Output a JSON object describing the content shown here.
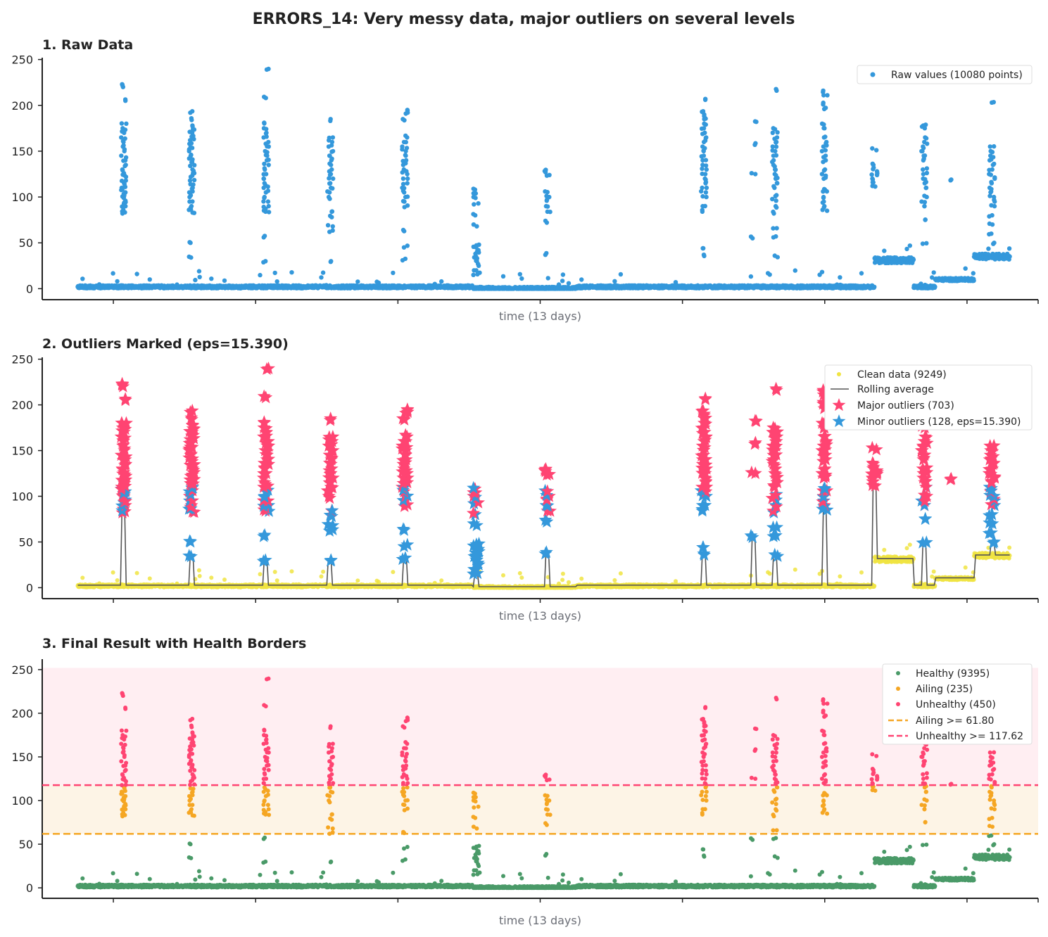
{
  "figure_title": "ERRORS_14: Very messy data, major outliers on several levels",
  "colors": {
    "raw": "#3498db",
    "clean": "#f0e442",
    "rolling": "#555555",
    "major": "#ff4472",
    "minor": "#3498db",
    "healthy": "#4a9a68",
    "ailing": "#f5a623",
    "unhealthy": "#ff4472",
    "ailing_band": "#fdf4e6",
    "unhealthy_band": "#ffeef2"
  },
  "chart_data": [
    {
      "type": "scatter",
      "title": "1. Raw Data",
      "xlabel": "time (13 days)",
      "ylabel": "",
      "xlim": [
        -0.5,
        13.5
      ],
      "ylim": [
        -12,
        252
      ],
      "yticks": [
        0,
        50,
        100,
        150,
        200,
        250
      ],
      "xticks": [
        0.5,
        2.5,
        4.5,
        6.5,
        8.5,
        10.5,
        12.5,
        13.5
      ],
      "xtick_labels": [
        "",
        "",
        "",
        "",
        "",
        "",
        "",
        ""
      ],
      "legend": {
        "position": "top-right",
        "entries": [
          "Raw values (10080 points)"
        ]
      },
      "series": [
        {
          "name": "Raw values (10080 points)",
          "marker": "dot"
        }
      ]
    },
    {
      "type": "scatter",
      "title": "2. Outliers Marked  (eps=15.390)",
      "xlabel": "time (13 days)",
      "ylabel": "",
      "xlim": [
        -0.5,
        13.5
      ],
      "ylim": [
        -12,
        252
      ],
      "yticks": [
        0,
        50,
        100,
        150,
        200,
        250
      ],
      "eps": 15.39,
      "legend": {
        "position": "top-right",
        "entries": [
          "Clean data (9249)",
          "Rolling average",
          "Major outliers (703)",
          "Minor outliers (128, eps=15.390)"
        ]
      },
      "series": [
        {
          "name": "Clean data (9249)",
          "marker": "dot"
        },
        {
          "name": "Rolling average",
          "marker": "line"
        },
        {
          "name": "Major outliers (703)",
          "marker": "star"
        },
        {
          "name": "Minor outliers (128, eps=15.390)",
          "marker": "star"
        }
      ]
    },
    {
      "type": "scatter",
      "title": "3. Final Result with Health Borders",
      "xlabel": "time (13 days)",
      "ylabel": "",
      "xlim": [
        -0.5,
        13.5
      ],
      "ylim": [
        -12,
        262
      ],
      "yticks": [
        0,
        50,
        100,
        150,
        200,
        250
      ],
      "thresholds": {
        "ailing": 61.8,
        "unhealthy": 117.62
      },
      "legend": {
        "position": "top-right",
        "entries": [
          "Healthy (9395)",
          "Ailing (235)",
          "Unhealthy (450)",
          "Ailing >= 61.80",
          "Unhealthy >= 117.62"
        ]
      },
      "series": [
        {
          "name": "Healthy (9395)",
          "marker": "dot"
        },
        {
          "name": "Ailing (235)",
          "marker": "dot"
        },
        {
          "name": "Unhealthy (450)",
          "marker": "dot"
        },
        {
          "name": "Ailing >= 61.80",
          "marker": "dashed-line"
        },
        {
          "name": "Unhealthy >= 117.62",
          "marker": "dashed-line"
        }
      ]
    }
  ],
  "spikes": [
    {
      "day": 0.65,
      "vals": [
        82,
        86,
        90,
        93,
        96,
        99,
        102,
        105,
        108,
        111,
        114,
        118,
        122,
        126,
        130,
        135,
        140,
        145,
        150,
        155,
        160,
        165,
        170,
        175,
        180,
        205,
        220,
        223
      ]
    },
    {
      "day": 1.6,
      "vals": [
        34,
        50,
        83,
        86,
        90,
        95,
        100,
        105,
        110,
        114,
        118,
        122,
        126,
        130,
        134,
        138,
        142,
        146,
        150,
        154,
        158,
        162,
        166,
        170,
        174,
        178,
        184,
        192
      ]
    },
    {
      "day": 2.65,
      "vals": [
        30,
        56,
        84,
        87,
        90,
        95,
        100,
        105,
        110,
        115,
        120,
        125,
        130,
        135,
        140,
        145,
        150,
        155,
        160,
        165,
        170,
        175,
        181,
        208,
        239
      ]
    },
    {
      "day": 3.55,
      "vals": [
        30,
        62,
        68,
        78,
        84,
        100,
        105,
        110,
        115,
        120,
        125,
        130,
        135,
        140,
        145,
        150,
        155,
        160,
        165,
        185
      ]
    },
    {
      "day": 4.6,
      "vals": [
        31,
        45,
        64,
        89,
        95,
        100,
        105,
        110,
        115,
        120,
        125,
        130,
        135,
        140,
        145,
        150,
        155,
        160,
        165,
        185,
        191,
        195
      ]
    },
    {
      "day": 5.6,
      "vals": [
        15,
        20,
        25,
        30,
        33,
        35,
        38,
        42,
        45,
        48,
        70,
        80,
        92,
        100,
        104,
        108
      ]
    },
    {
      "day": 6.6,
      "vals": [
        37,
        72,
        84,
        90,
        96,
        100,
        106,
        124,
        127,
        129
      ]
    },
    {
      "day": 8.8,
      "vals": [
        37,
        44,
        84,
        90,
        100,
        105,
        110,
        115,
        120,
        125,
        130,
        135,
        140,
        145,
        150,
        155,
        160,
        165,
        170,
        175,
        180,
        185,
        190,
        193,
        206
      ]
    },
    {
      "day": 9.5,
      "vals": [
        55,
        126,
        157,
        182
      ]
    },
    {
      "day": 9.8,
      "vals": [
        36,
        56,
        66,
        82,
        90,
        96,
        102,
        110,
        115,
        120,
        125,
        130,
        135,
        140,
        145,
        150,
        155,
        160,
        165,
        170,
        175,
        216
      ]
    },
    {
      "day": 10.5,
      "vals": [
        86,
        90,
        95,
        100,
        106,
        108,
        120,
        125,
        130,
        140,
        145,
        150,
        155,
        160,
        165,
        175,
        180,
        196,
        201,
        211,
        216
      ]
    },
    {
      "day": 11.2,
      "vals": [
        112,
        116,
        120,
        124,
        128,
        132,
        135,
        153
      ]
    },
    {
      "day": 11.9,
      "vals": [
        49,
        75,
        90,
        95,
        100,
        110,
        115,
        120,
        125,
        130,
        140,
        145,
        150,
        155,
        160,
        165,
        175,
        178
      ]
    },
    {
      "day": 12.3,
      "vals": [
        119
      ]
    },
    {
      "day": 12.85,
      "vals": [
        50,
        60,
        70,
        80,
        90,
        95,
        100,
        105,
        110,
        115,
        120,
        125,
        130,
        135,
        140,
        145,
        150,
        155,
        203
      ]
    }
  ]
}
